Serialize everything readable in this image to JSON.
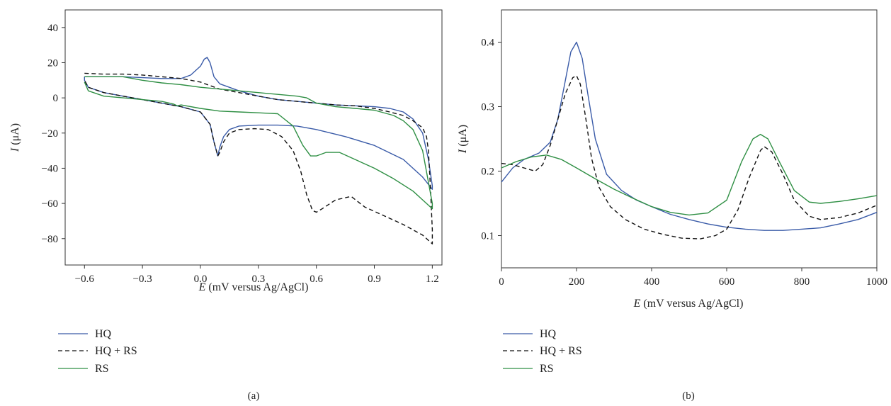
{
  "chart_data": [
    {
      "type": "line",
      "panel_label": "(a)",
      "xlabel_italic": "E",
      "xlabel_rest": " (mV versus Ag/AgCl)",
      "ylabel_italic": "I",
      "ylabel_rest": " (μA)",
      "xlim": [
        -0.7,
        1.25
      ],
      "ylim": [
        -95,
        50
      ],
      "xticks": [
        -0.6,
        -0.3,
        0.0,
        0.3,
        0.6,
        0.9,
        1.2
      ],
      "xtick_labels": [
        "−0.6",
        "−0.3",
        "0.0",
        "0.3",
        "0.6",
        "0.9",
        "1.2"
      ],
      "yticks": [
        40,
        20,
        0,
        -20,
        -40,
        -60,
        -80
      ],
      "ytick_labels": [
        "40",
        "20",
        "0",
        "−20",
        "−40",
        "−60",
        "−80"
      ],
      "grid": false,
      "legend_position": "below",
      "series": [
        {
          "name": "HQ",
          "color": "#3a5ba8",
          "dash": "solid",
          "x": [
            -0.6,
            -0.5,
            -0.4,
            -0.3,
            -0.2,
            -0.1,
            -0.05,
            0.0,
            0.02,
            0.035,
            0.05,
            0.07,
            0.1,
            0.2,
            0.3,
            0.4,
            0.5,
            0.6,
            0.7,
            0.8,
            0.9,
            0.98,
            1.05,
            1.1,
            1.15,
            1.18,
            1.2,
            1.2,
            1.15,
            1.05,
            0.9,
            0.75,
            0.6,
            0.5,
            0.4,
            0.3,
            0.2,
            0.15,
            0.12,
            0.1,
            0.09,
            0.07,
            0.05,
            0.0,
            -0.1,
            -0.2,
            -0.3,
            -0.4,
            -0.5,
            -0.58,
            -0.6,
            -0.6
          ],
          "y": [
            12,
            12,
            12,
            11.5,
            11,
            11,
            13,
            18,
            22,
            23,
            20,
            12,
            8,
            4,
            1,
            -1,
            -2,
            -3,
            -4,
            -4.5,
            -5,
            -6,
            -8,
            -12,
            -20,
            -35,
            -50,
            -52,
            -45,
            -35,
            -27,
            -22,
            -18,
            -16,
            -15.5,
            -15.5,
            -16,
            -18,
            -22,
            -28,
            -33,
            -25,
            -15,
            -8,
            -5,
            -3,
            -1,
            1,
            3,
            6,
            10,
            12
          ]
        },
        {
          "name": "HQ + RS",
          "color": "#111111",
          "dash": "6,4",
          "x": [
            -0.6,
            -0.5,
            -0.4,
            -0.3,
            -0.2,
            -0.1,
            0.0,
            0.05,
            0.1,
            0.2,
            0.3,
            0.4,
            0.5,
            0.6,
            0.7,
            0.8,
            0.9,
            0.98,
            1.05,
            1.1,
            1.15,
            1.17,
            1.18,
            1.19,
            1.2,
            1.2,
            1.15,
            1.05,
            0.95,
            0.85,
            0.78,
            0.7,
            0.63,
            0.6,
            0.58,
            0.55,
            0.52,
            0.48,
            0.42,
            0.35,
            0.28,
            0.2,
            0.15,
            0.12,
            0.1,
            0.09,
            0.07,
            0.05,
            0.0,
            -0.1,
            -0.2,
            -0.3,
            -0.4,
            -0.5,
            -0.58,
            -0.6
          ],
          "y": [
            14,
            13.5,
            13.5,
            13,
            12,
            11,
            9,
            7,
            5,
            3,
            1,
            -1,
            -2,
            -3,
            -4,
            -4.5,
            -6,
            -8,
            -10,
            -13,
            -17,
            -22,
            -30,
            -50,
            -75,
            -83,
            -78,
            -72,
            -67,
            -62,
            -56,
            -58,
            -63,
            -65,
            -64,
            -55,
            -42,
            -30,
            -22,
            -18,
            -17.5,
            -18,
            -20,
            -25,
            -31,
            -33,
            -25,
            -15,
            -8,
            -5,
            -3,
            -1,
            1,
            3,
            6,
            10
          ]
        },
        {
          "name": "RS",
          "color": "#2f8f44",
          "dash": "solid",
          "x": [
            -0.6,
            -0.5,
            -0.4,
            -0.3,
            -0.2,
            -0.1,
            0.0,
            0.1,
            0.2,
            0.3,
            0.4,
            0.5,
            0.55,
            0.6,
            0.7,
            0.8,
            0.9,
            1.0,
            1.05,
            1.1,
            1.15,
            1.2,
            1.2,
            1.15,
            1.1,
            1.0,
            0.9,
            0.8,
            0.72,
            0.65,
            0.6,
            0.57,
            0.53,
            0.48,
            0.4,
            0.3,
            0.2,
            0.1,
            0.0,
            -0.1,
            -0.12,
            -0.14,
            -0.2,
            -0.3,
            -0.4,
            -0.5,
            -0.58,
            -0.6
          ],
          "y": [
            12,
            12,
            12,
            10,
            8.5,
            7.5,
            6,
            5,
            4,
            3,
            2,
            1,
            0,
            -3,
            -5,
            -6,
            -7,
            -10,
            -13,
            -18,
            -30,
            -60,
            -63,
            -58,
            -53,
            -46,
            -40,
            -35,
            -31,
            -31,
            -33,
            -33,
            -27,
            -16,
            -9,
            -8.5,
            -8,
            -7.5,
            -6,
            -4,
            -4.5,
            -3.5,
            -2,
            -1,
            0,
            1,
            4,
            9
          ]
        }
      ]
    },
    {
      "type": "line",
      "panel_label": "(b)",
      "xlabel_italic": "E",
      "xlabel_rest": " (mV versus Ag/AgCl)",
      "ylabel_italic": "I",
      "ylabel_rest": " (μA)",
      "xlim": [
        0,
        1000
      ],
      "ylim": [
        0.05,
        0.45
      ],
      "xticks": [
        0,
        200,
        400,
        600,
        800,
        1000
      ],
      "xtick_labels": [
        "0",
        "200",
        "400",
        "600",
        "800",
        "1000"
      ],
      "yticks": [
        0.4,
        0.3,
        0.2,
        0.1
      ],
      "ytick_labels": [
        "0.4",
        "0.3",
        "0.2",
        "0.1"
      ],
      "grid": false,
      "legend_position": "below",
      "series": [
        {
          "name": "HQ",
          "color": "#3a5ba8",
          "dash": "solid",
          "x": [
            0,
            30,
            60,
            100,
            130,
            150,
            170,
            185,
            200,
            215,
            230,
            250,
            280,
            320,
            360,
            400,
            450,
            500,
            550,
            600,
            650,
            700,
            750,
            800,
            850,
            900,
            950,
            1000
          ],
          "y": [
            0.183,
            0.205,
            0.218,
            0.228,
            0.245,
            0.28,
            0.34,
            0.385,
            0.4,
            0.375,
            0.32,
            0.25,
            0.195,
            0.17,
            0.155,
            0.145,
            0.133,
            0.125,
            0.118,
            0.113,
            0.11,
            0.108,
            0.108,
            0.11,
            0.112,
            0.118,
            0.125,
            0.136
          ]
        },
        {
          "name": "HQ + RS",
          "color": "#111111",
          "dash": "6,4",
          "x": [
            0,
            30,
            60,
            90,
            110,
            130,
            150,
            170,
            190,
            200,
            210,
            225,
            240,
            260,
            290,
            330,
            380,
            430,
            480,
            530,
            570,
            600,
            630,
            660,
            690,
            700,
            720,
            750,
            780,
            820,
            850,
            900,
            950,
            1000
          ],
          "y": [
            0.212,
            0.21,
            0.205,
            0.2,
            0.21,
            0.24,
            0.28,
            0.32,
            0.345,
            0.348,
            0.335,
            0.28,
            0.22,
            0.175,
            0.145,
            0.125,
            0.11,
            0.102,
            0.096,
            0.095,
            0.1,
            0.11,
            0.14,
            0.19,
            0.232,
            0.238,
            0.23,
            0.195,
            0.155,
            0.13,
            0.125,
            0.128,
            0.135,
            0.147
          ]
        },
        {
          "name": "RS",
          "color": "#2f8f44",
          "dash": "solid",
          "x": [
            0,
            40,
            80,
            120,
            160,
            200,
            250,
            300,
            350,
            400,
            450,
            500,
            550,
            600,
            640,
            670,
            690,
            710,
            740,
            780,
            820,
            850,
            900,
            950,
            1000
          ],
          "y": [
            0.205,
            0.215,
            0.222,
            0.225,
            0.218,
            0.205,
            0.188,
            0.172,
            0.158,
            0.145,
            0.136,
            0.132,
            0.135,
            0.155,
            0.215,
            0.25,
            0.257,
            0.25,
            0.215,
            0.17,
            0.152,
            0.15,
            0.153,
            0.157,
            0.162
          ]
        }
      ]
    }
  ]
}
